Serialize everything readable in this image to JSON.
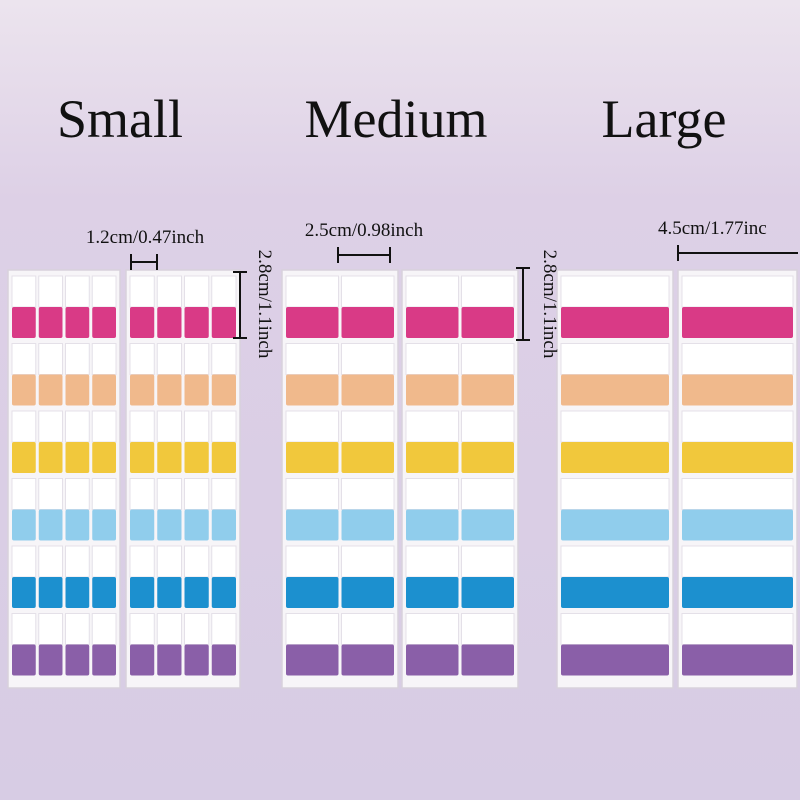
{
  "titles": {
    "small": "Small",
    "medium": "Medium",
    "large": "Large"
  },
  "dimensions": {
    "small_width": "1.2cm/0.47inch",
    "small_height": "2.8cm/1.1inch",
    "medium_width": "2.5cm/0.98inch",
    "medium_height": "2.8cm/1.1inch",
    "large_width": "4.5cm/1.77inc"
  }
}
